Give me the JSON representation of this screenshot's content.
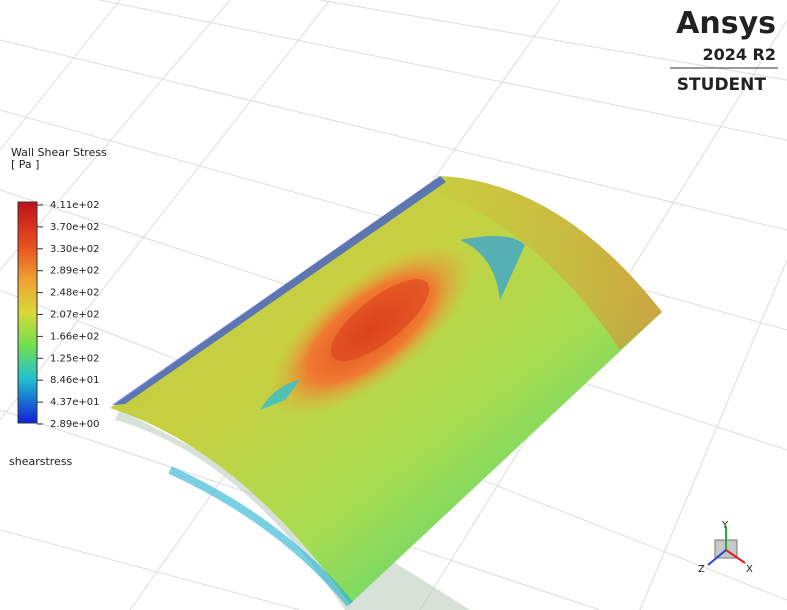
{
  "logo": {
    "brand": "Ansys",
    "version": "2024 R2",
    "edition": "STUDENT"
  },
  "legend": {
    "title": "Wall Shear Stress",
    "unit": "[ Pa ]",
    "labels": [
      "4.11e+02",
      "3.70e+02",
      "3.30e+02",
      "2.89e+02",
      "2.48e+02",
      "2.07e+02",
      "1.66e+02",
      "1.25e+02",
      "8.46e+01",
      "4.37e+01",
      "2.89e+00"
    ]
  },
  "variable": "shearstress",
  "triad": {
    "x": "X",
    "y": "Y",
    "z": "Z"
  }
}
